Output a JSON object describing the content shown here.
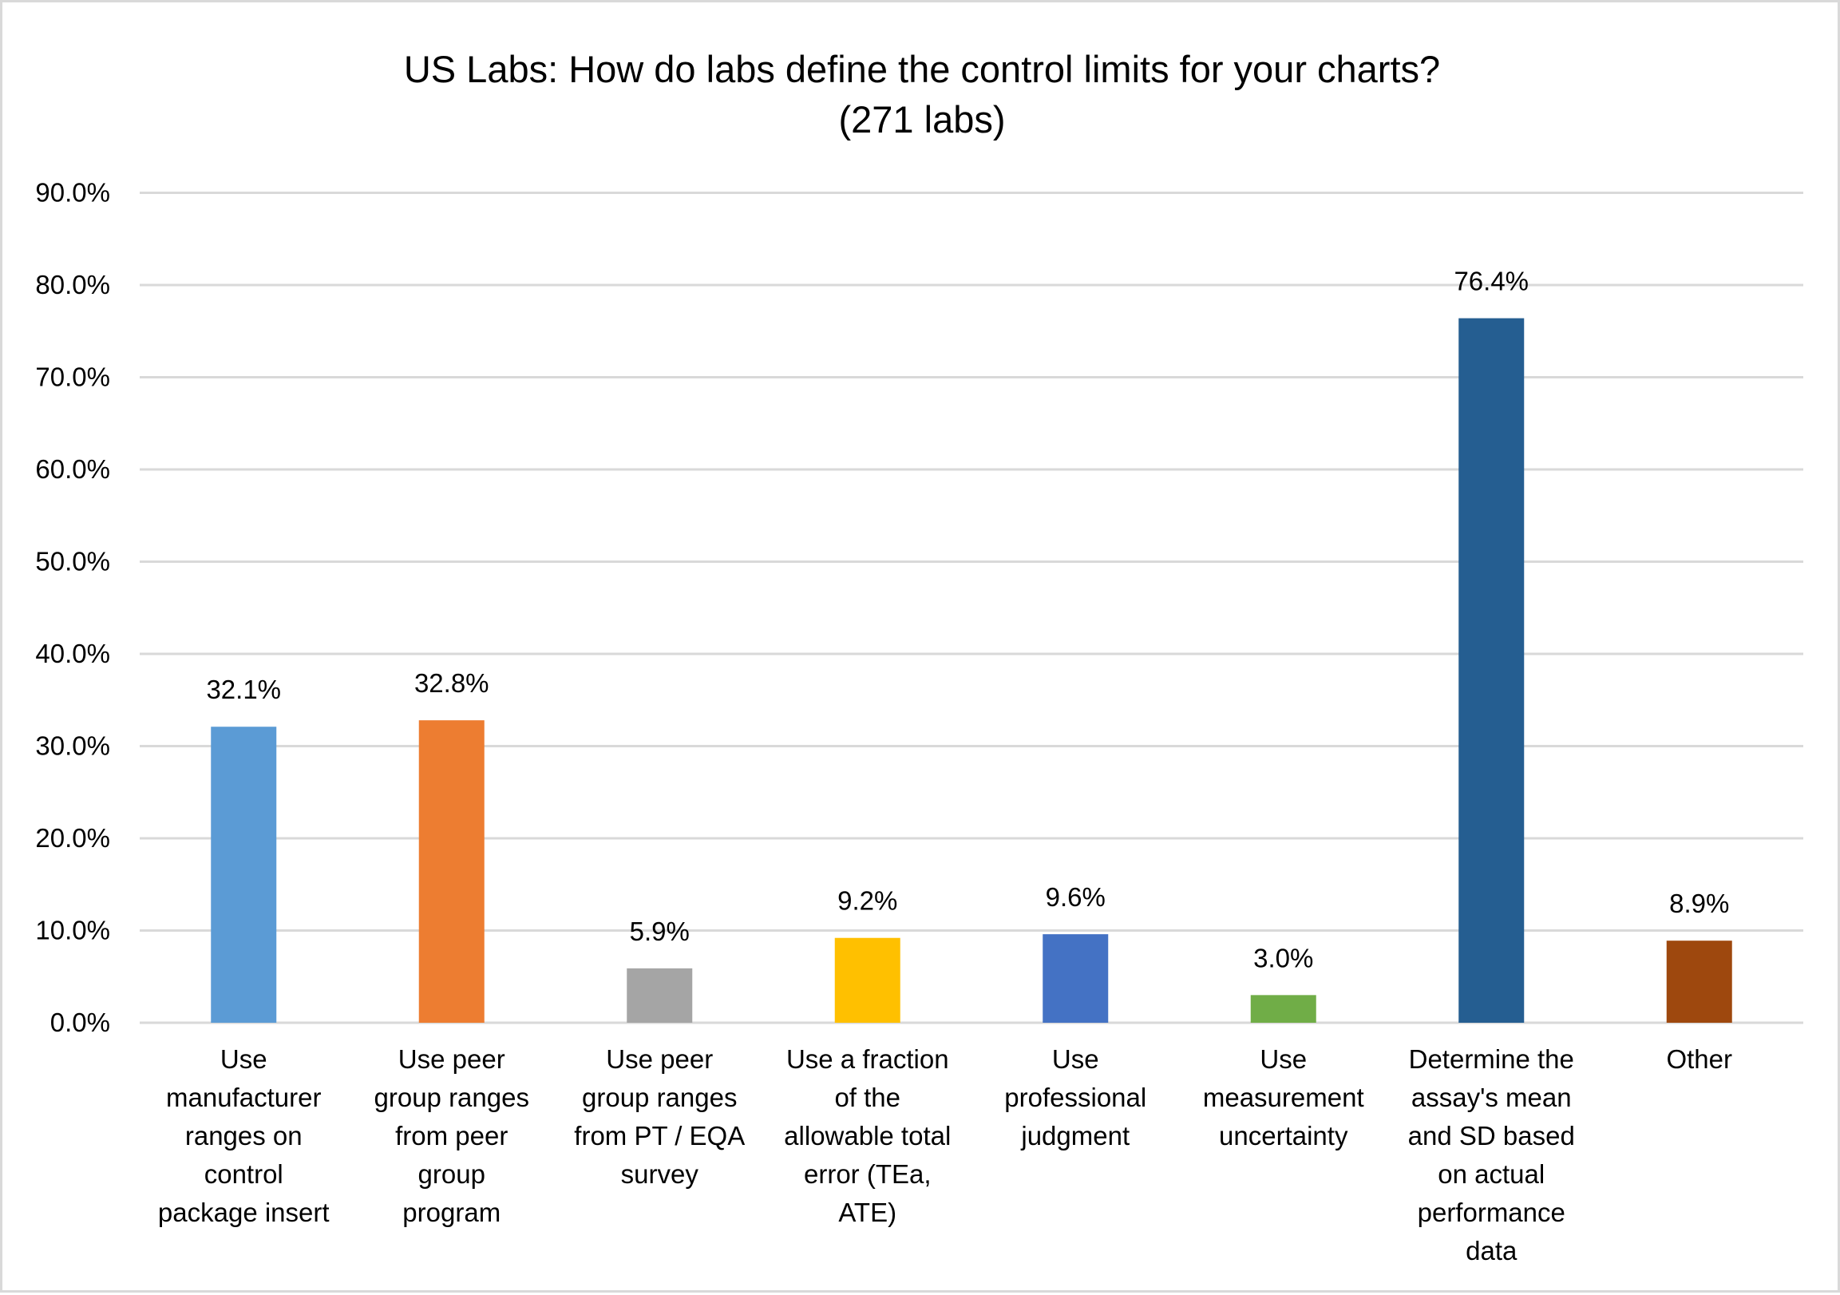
{
  "chart_data": {
    "type": "bar",
    "title": "US Labs: How do labs define the control limits for your charts?",
    "subtitle": "(271 labs)",
    "xlabel": "",
    "ylabel": "",
    "ylim": [
      0,
      90
    ],
    "yticks": [
      0,
      10,
      20,
      30,
      40,
      50,
      60,
      70,
      80,
      90
    ],
    "ytick_labels": [
      "0.0%",
      "10.0%",
      "20.0%",
      "30.0%",
      "40.0%",
      "50.0%",
      "60.0%",
      "70.0%",
      "80.0%",
      "90.0%"
    ],
    "grid": true,
    "legend": "none",
    "categories": [
      [
        "Use",
        "manufacturer",
        "ranges on",
        "control",
        "package insert"
      ],
      [
        "Use peer",
        "group ranges",
        "from peer",
        "group",
        "program"
      ],
      [
        "Use peer",
        "group ranges",
        "from PT / EQA",
        "survey"
      ],
      [
        "Use a fraction",
        "of the",
        "allowable total",
        "error (TEa,",
        "ATE)"
      ],
      [
        "Use",
        "professional",
        "judgment"
      ],
      [
        "Use",
        "measurement",
        "uncertainty"
      ],
      [
        "Determine the",
        "assay's mean",
        "and SD based",
        "on actual",
        "performance",
        "data"
      ],
      [
        "Other"
      ]
    ],
    "values": [
      32.1,
      32.8,
      5.9,
      9.2,
      9.6,
      3.0,
      76.4,
      8.9
    ],
    "value_labels": [
      "32.1%",
      "32.8%",
      "5.9%",
      "9.2%",
      "9.6%",
      "3.0%",
      "76.4%",
      "8.9%"
    ],
    "colors": [
      "#5B9BD5",
      "#ED7D31",
      "#A5A5A5",
      "#FFC000",
      "#4472C4",
      "#70AD47",
      "#255E91",
      "#9E480E"
    ]
  }
}
